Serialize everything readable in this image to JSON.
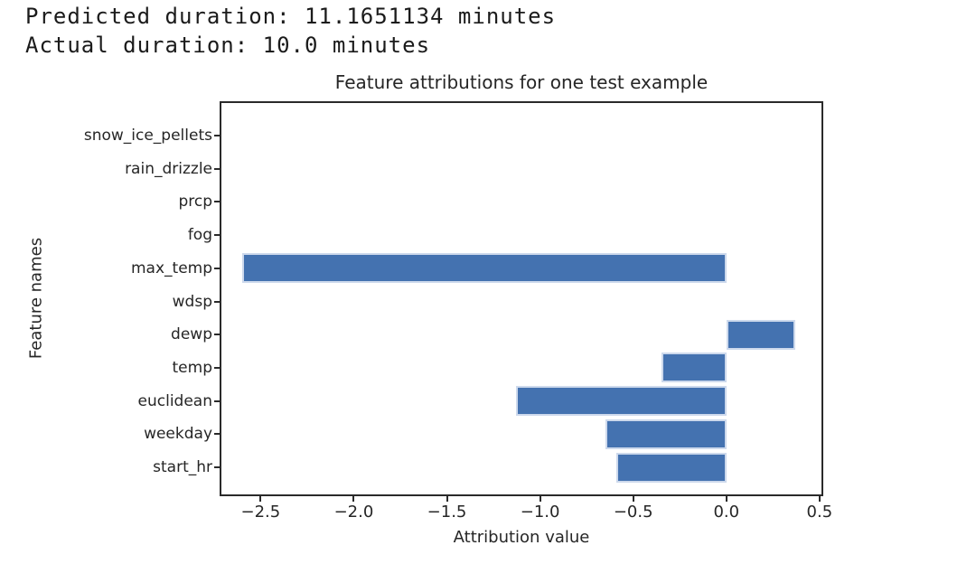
{
  "header": {
    "line1": "Predicted duration: 11.1651134 minutes",
    "line2": "Actual duration: 10.0 minutes"
  },
  "chart_data": {
    "type": "bar",
    "orientation": "horizontal",
    "title": "Feature attributions for one test example",
    "xlabel": "Attribution value",
    "ylabel": "Feature names",
    "categories": [
      "snow_ice_pellets",
      "rain_drizzle",
      "prcp",
      "fog",
      "max_temp",
      "wdsp",
      "dewp",
      "temp",
      "euclidean",
      "weekday",
      "start_hr"
    ],
    "values": [
      0,
      0,
      0,
      0,
      -2.6,
      0,
      0.37,
      -0.35,
      -1.13,
      -0.65,
      -0.59
    ],
    "xlim": [
      -2.72,
      0.52
    ],
    "xticks": [
      -2.5,
      -2.0,
      -1.5,
      -1.0,
      -0.5,
      0.0,
      0.5
    ],
    "xtick_labels": [
      "−2.5",
      "−2.0",
      "−1.5",
      "−1.0",
      "−0.5",
      "0.0",
      "0.5"
    ],
    "grid": false,
    "legend": null,
    "bar_color": "#4472b0",
    "bar_edge_color": "#cdd9ec",
    "text_color": "#262626"
  }
}
